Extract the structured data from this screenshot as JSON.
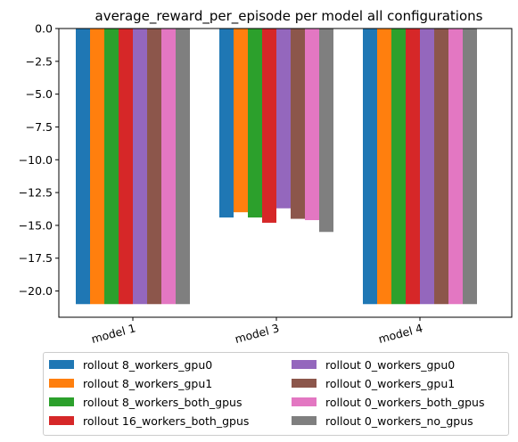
{
  "chart_data": {
    "type": "bar",
    "title": "average_reward_per_episode per model all configurations",
    "xlabel": "",
    "ylabel": "",
    "categories": [
      "model 1",
      "model 3",
      "model 4"
    ],
    "ylim": [
      -22.0,
      0.0
    ],
    "yticks": [
      0.0,
      -2.5,
      -5.0,
      -7.5,
      -10.0,
      -12.5,
      -15.0,
      -17.5,
      -20.0
    ],
    "ytick_labels": [
      "0.0",
      "−2.5",
      "−5.0",
      "−7.5",
      "−10.0",
      "−12.5",
      "−15.0",
      "−17.5",
      "−20.0"
    ],
    "legend_position": "bottom",
    "grid": false,
    "series": [
      {
        "name": "rollout 8_workers_gpu0",
        "color": "#1f77b4",
        "values": [
          -21.0,
          -14.4,
          -21.0
        ]
      },
      {
        "name": "rollout 8_workers_gpu1",
        "color": "#ff7f0e",
        "values": [
          -21.0,
          -14.0,
          -21.0
        ]
      },
      {
        "name": "rollout 8_workers_both_gpus",
        "color": "#2ca02c",
        "values": [
          -21.0,
          -14.4,
          -21.0
        ]
      },
      {
        "name": "rollout 16_workers_both_gpus",
        "color": "#d62728",
        "values": [
          -21.0,
          -14.8,
          -21.0
        ]
      },
      {
        "name": "rollout 0_workers_gpu0",
        "color": "#9467bd",
        "values": [
          -21.0,
          -13.7,
          -21.0
        ]
      },
      {
        "name": "rollout 0_workers_gpu1",
        "color": "#8c564b",
        "values": [
          -21.0,
          -14.5,
          -21.0
        ]
      },
      {
        "name": "rollout 0_workers_both_gpus",
        "color": "#e377c2",
        "values": [
          -21.0,
          -14.6,
          -21.0
        ]
      },
      {
        "name": "rollout 0_workers_no_gpus",
        "color": "#7f7f7f",
        "values": [
          -21.0,
          -15.5,
          -21.0
        ]
      }
    ]
  }
}
